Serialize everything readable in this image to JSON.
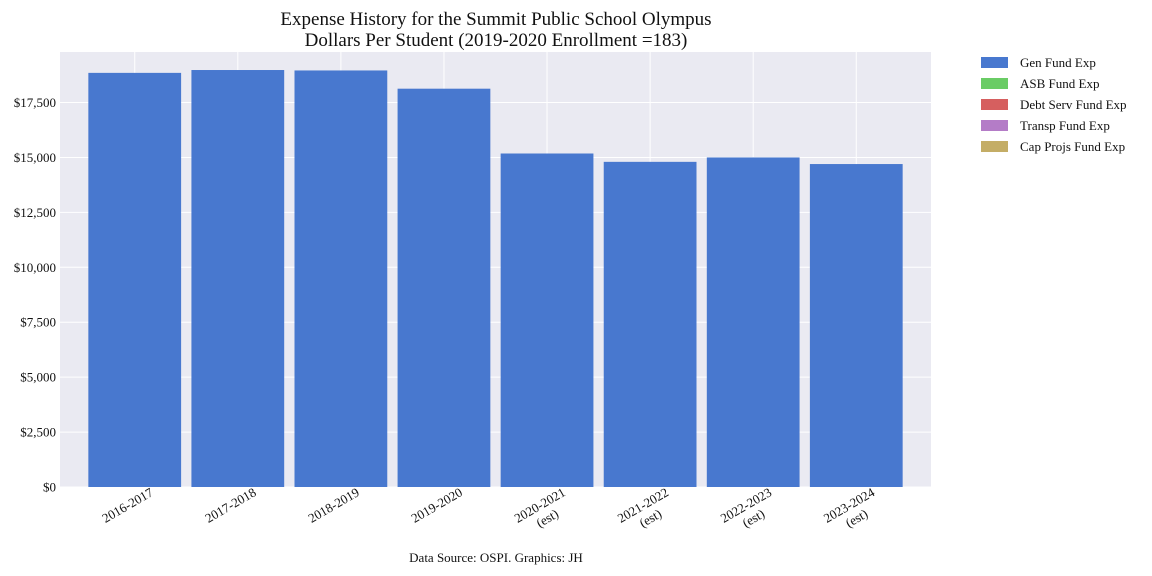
{
  "chart_data": {
    "type": "bar",
    "title_line1": "Expense History for the Summit Public School Olympus",
    "title_line2": "Dollars Per Student (2019-2020 Enrollment =183)",
    "categories": [
      [
        "2016-2017"
      ],
      [
        "2017-2018"
      ],
      [
        "2018-2019"
      ],
      [
        "2019-2020"
      ],
      [
        "2020-2021",
        "(est)"
      ],
      [
        "2021-2022",
        "(est)"
      ],
      [
        "2022-2023",
        "(est)"
      ],
      [
        "2023-2024",
        "(est)"
      ]
    ],
    "series": [
      {
        "name": "Gen Fund Exp",
        "color": "#4878cf",
        "values": [
          18850,
          18980,
          18960,
          18130,
          15180,
          14800,
          15000,
          14700
        ]
      },
      {
        "name": "ASB Fund Exp",
        "color": "#6acc65",
        "values": [
          0,
          0,
          0,
          0,
          0,
          0,
          0,
          0
        ]
      },
      {
        "name": "Debt Serv Fund Exp",
        "color": "#d65f5f",
        "values": [
          0,
          0,
          0,
          0,
          0,
          0,
          0,
          0
        ]
      },
      {
        "name": "Transp Fund Exp",
        "color": "#b47cc7",
        "values": [
          0,
          0,
          0,
          0,
          0,
          0,
          0,
          0
        ]
      },
      {
        "name": "Cap Projs Fund Exp",
        "color": "#c4ad66",
        "values": [
          0,
          0,
          0,
          0,
          0,
          0,
          0,
          0
        ]
      }
    ],
    "ylim": [
      0,
      19800
    ],
    "yticks": [
      0,
      2500,
      5000,
      7500,
      10000,
      12500,
      15000,
      17500
    ],
    "ytick_labels": [
      "$0",
      "$2,500",
      "$5,000",
      "$7,500",
      "$10,000",
      "$12,500",
      "$15,000",
      "$17,500"
    ],
    "grid": true,
    "legend_placement": "outside-top-right",
    "stacked": true
  },
  "footer": {
    "source": "Data Source: OSPI. Graphics: JH"
  }
}
